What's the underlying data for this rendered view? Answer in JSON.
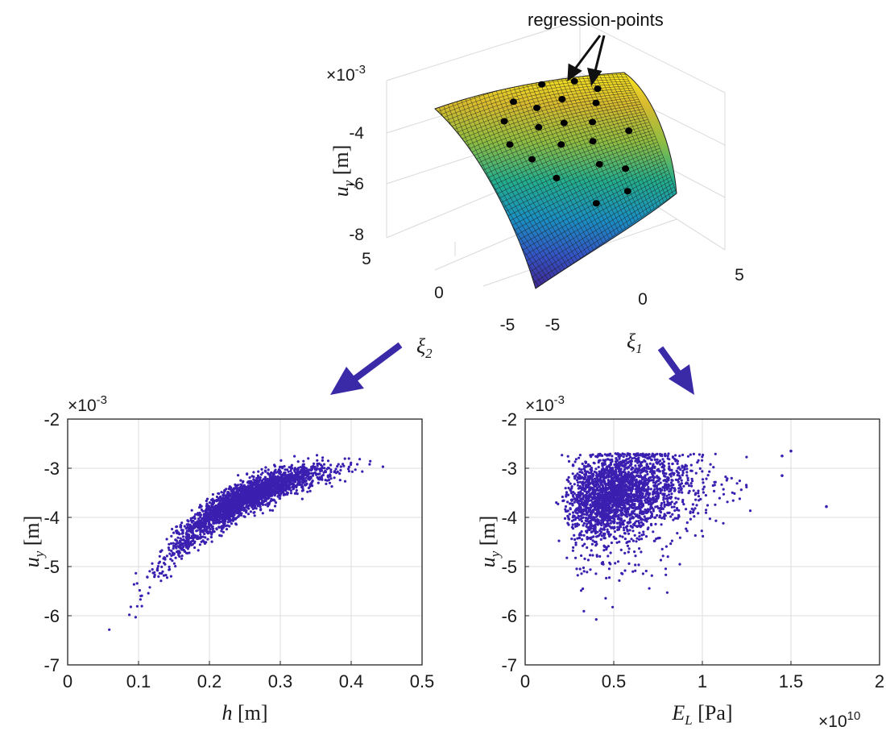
{
  "colors": {
    "scatter": "#3a1fb0",
    "arrow": "#3b2aa8",
    "axis": "#222222",
    "grid": "#dddddd"
  },
  "chart_data": [
    {
      "type": "surface",
      "annotation": "regression-points",
      "exponent_label": "×10",
      "exponent_power": "-3",
      "ylabel_main": "u",
      "ylabel_sub": "y",
      "ylabel_unit": " [m]",
      "zlim": [
        -8.3,
        -3.1
      ],
      "z_ticks": [
        "-4",
        "-6",
        "-8"
      ],
      "xi1_ticks": [
        "-5",
        "0",
        "5"
      ],
      "xi2_ticks": [
        "5",
        "0",
        "-5"
      ],
      "xi1_label_main": "ξ",
      "xi1_label_sub": "1",
      "xi2_label_main": "ξ",
      "xi2_label_sub": "2",
      "grid": true,
      "colormap": "parula"
    },
    {
      "type": "scatter",
      "xlim": [
        0,
        0.5
      ],
      "ylim": [
        -7,
        -2
      ],
      "x_ticks": [
        "0",
        "0.1",
        "0.2",
        "0.3",
        "0.4",
        "0.5"
      ],
      "y_ticks": [
        "-2",
        "-3",
        "-4",
        "-5",
        "-6",
        "-7"
      ],
      "xlabel_main": "h",
      "xlabel_unit": " [m]",
      "ylabel_main": "u",
      "ylabel_sub": "y",
      "ylabel_unit": " [m]",
      "exponent_label": "×10",
      "exponent_power": "-3",
      "grid": true,
      "trend": {
        "x": [
          0.06,
          0.1,
          0.15,
          0.2,
          0.25,
          0.3,
          0.35,
          0.4,
          0.47
        ],
        "y": [
          -6.4,
          -5.5,
          -4.6,
          -4.0,
          -3.6,
          -3.3,
          -3.1,
          -2.95,
          -2.85
        ]
      }
    },
    {
      "type": "scatter",
      "xlim": [
        0,
        2
      ],
      "ylim": [
        -7,
        -2
      ],
      "x_ticks": [
        "0",
        "0.5",
        "1",
        "1.5",
        "2"
      ],
      "y_ticks": [
        "-2",
        "-3",
        "-4",
        "-5",
        "-6",
        "-7"
      ],
      "xlabel_main": "E",
      "xlabel_sub": "L",
      "xlabel_unit": " [Pa]",
      "ylabel_main": "u",
      "ylabel_sub": "y",
      "ylabel_unit": " [m]",
      "exponent_label": "×10",
      "exponent_power": "-3",
      "x_exponent_label": "×10",
      "x_exponent_power": "10",
      "grid": true,
      "outliers": [
        {
          "x": 1.5,
          "y": -2.65
        },
        {
          "x": 1.45,
          "y": -3.15
        },
        {
          "x": 1.7,
          "y": -3.78
        },
        {
          "x": 1.45,
          "y": -2.75
        }
      ]
    }
  ]
}
